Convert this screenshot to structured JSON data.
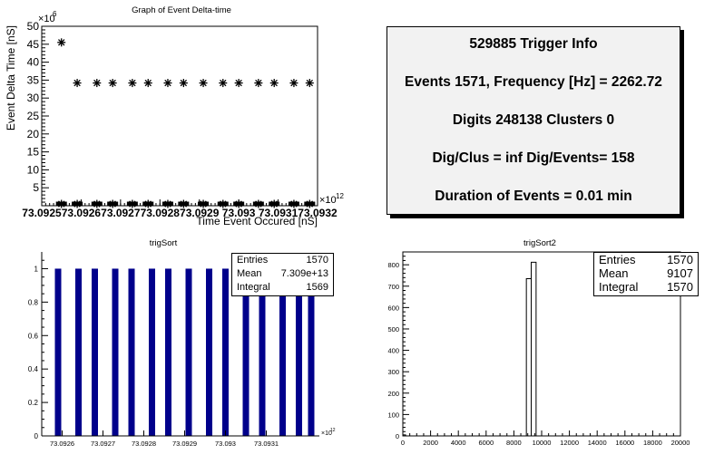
{
  "info": {
    "title": "529885 Trigger Info",
    "line1": "Events 1571, Frequency [Hz] = 2262.72",
    "line2": "Digits 248138 Clusters 0",
    "line3": "Dig/Clus = inf Dig/Events= 158",
    "line4": "Duration of Events = 0.01 min"
  },
  "chart_data": [
    {
      "type": "scatter",
      "title": "Graph of Event Delta-time",
      "xlabel": "Time Event Occured [nS]",
      "ylabel": "Event Delta Time [nS]",
      "y_exponent": "×10",
      "y_exponent_power": "6",
      "x_exponent": "×10",
      "x_exponent_power": "12",
      "xlim": [
        73.0925,
        73.0932
      ],
      "ylim": [
        0,
        50
      ],
      "y_ticks": [
        5,
        10,
        15,
        20,
        25,
        30,
        35,
        40,
        45,
        50
      ],
      "x_tick_labels": [
        "73.0925",
        "73.0926",
        "73.0927",
        "73.0928",
        "73.0929",
        "73.093",
        "73.0931",
        "73.0932"
      ],
      "x_tick_values": [
        73.0925,
        73.0926,
        73.0927,
        73.0928,
        73.0929,
        73.093,
        73.0931,
        73.0932
      ],
      "points_high": [
        {
          "x": 73.09255,
          "y": 45.5
        },
        {
          "x": 73.09259,
          "y": 34.2
        },
        {
          "x": 73.09264,
          "y": 34.2
        },
        {
          "x": 73.09268,
          "y": 34.2
        },
        {
          "x": 73.09273,
          "y": 34.2
        },
        {
          "x": 73.09277,
          "y": 34.2
        },
        {
          "x": 73.09282,
          "y": 34.2
        },
        {
          "x": 73.09286,
          "y": 34.2
        },
        {
          "x": 73.09291,
          "y": 34.2
        },
        {
          "x": 73.09296,
          "y": 34.2
        },
        {
          "x": 73.093,
          "y": 34.2
        },
        {
          "x": 73.09305,
          "y": 34.2
        },
        {
          "x": 73.09309,
          "y": 34.2
        },
        {
          "x": 73.09314,
          "y": 34.2
        },
        {
          "x": 73.09318,
          "y": 34.2
        }
      ],
      "points_low_x": [
        73.09255,
        73.09259,
        73.09264,
        73.09268,
        73.09273,
        73.09277,
        73.09282,
        73.09286,
        73.09291,
        73.09296,
        73.093,
        73.09305,
        73.09309,
        73.09314,
        73.09318
      ],
      "points_low_y": 0.5
    },
    {
      "type": "bar",
      "title": "trigSort",
      "x_exponent": "×10",
      "x_exponent_power": "12",
      "xlim": [
        73.09255,
        73.09323
      ],
      "ylim": [
        0,
        1.1
      ],
      "y_ticks": [
        0,
        0.2,
        0.4,
        0.6,
        0.8,
        1
      ],
      "y_tick_labels": [
        "0",
        "0.2",
        "0.4",
        "0.6",
        "0.8",
        "1"
      ],
      "x_tick_labels": [
        "73.0926",
        "73.0927",
        "73.0928",
        "73.0929",
        "73.093",
        "73.0931"
      ],
      "x_tick_values": [
        73.0926,
        73.0927,
        73.0928,
        73.0929,
        73.093,
        73.0931
      ],
      "bars_x": [
        73.09259,
        73.09264,
        73.09268,
        73.09273,
        73.09277,
        73.09282,
        73.09286,
        73.09291,
        73.09296,
        73.093,
        73.09305,
        73.09309,
        73.09314,
        73.09318,
        73.09321
      ],
      "bar_value": 1,
      "bar_color": "#00008b",
      "stats": {
        "entries_label": "Entries",
        "entries": "1570",
        "mean_label": "Mean",
        "mean": "7.309e+13",
        "integral_label": "Integral",
        "integral": "1569"
      }
    },
    {
      "type": "histogram",
      "title": "trigSort2",
      "xlim": [
        0,
        20000
      ],
      "ylim": [
        0,
        860
      ],
      "y_ticks": [
        0,
        100,
        200,
        300,
        400,
        500,
        600,
        700,
        800
      ],
      "x_ticks": [
        0,
        2000,
        4000,
        6000,
        8000,
        10000,
        12000,
        14000,
        16000,
        18000,
        20000
      ],
      "bins": [
        {
          "x0": 0,
          "x1": 200,
          "y": 5
        },
        {
          "x0": 8900,
          "x1": 9250,
          "y": 735
        },
        {
          "x0": 9250,
          "x1": 9600,
          "y": 812
        }
      ],
      "stats": {
        "entries_label": "Entries",
        "entries": "1570",
        "mean_label": "Mean",
        "mean": "9107",
        "integral_label": "Integral",
        "integral": "1570"
      }
    }
  ]
}
